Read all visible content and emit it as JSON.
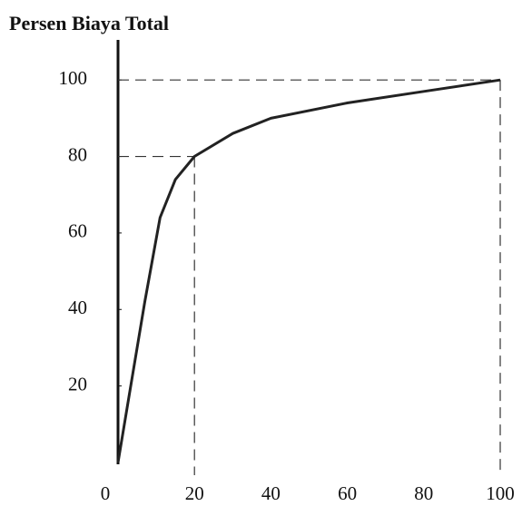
{
  "chart_data": {
    "type": "line",
    "title": "Persen Biaya Total",
    "x": [
      0,
      3,
      7,
      11,
      15,
      20,
      30,
      40,
      60,
      80,
      100
    ],
    "series": [
      {
        "values": [
          0,
          18,
          42,
          64,
          74,
          80,
          86,
          90,
          94,
          97,
          100
        ],
        "color": "#222222"
      }
    ],
    "xlim": [
      0,
      100
    ],
    "ylim": [
      0,
      110
    ],
    "xticks": [
      0,
      20,
      40,
      60,
      80,
      100
    ],
    "yticks": [
      20,
      40,
      60,
      80,
      100
    ],
    "guides": [
      {
        "x": 20,
        "y": 80
      },
      {
        "x": 100,
        "y": 100
      }
    ]
  }
}
